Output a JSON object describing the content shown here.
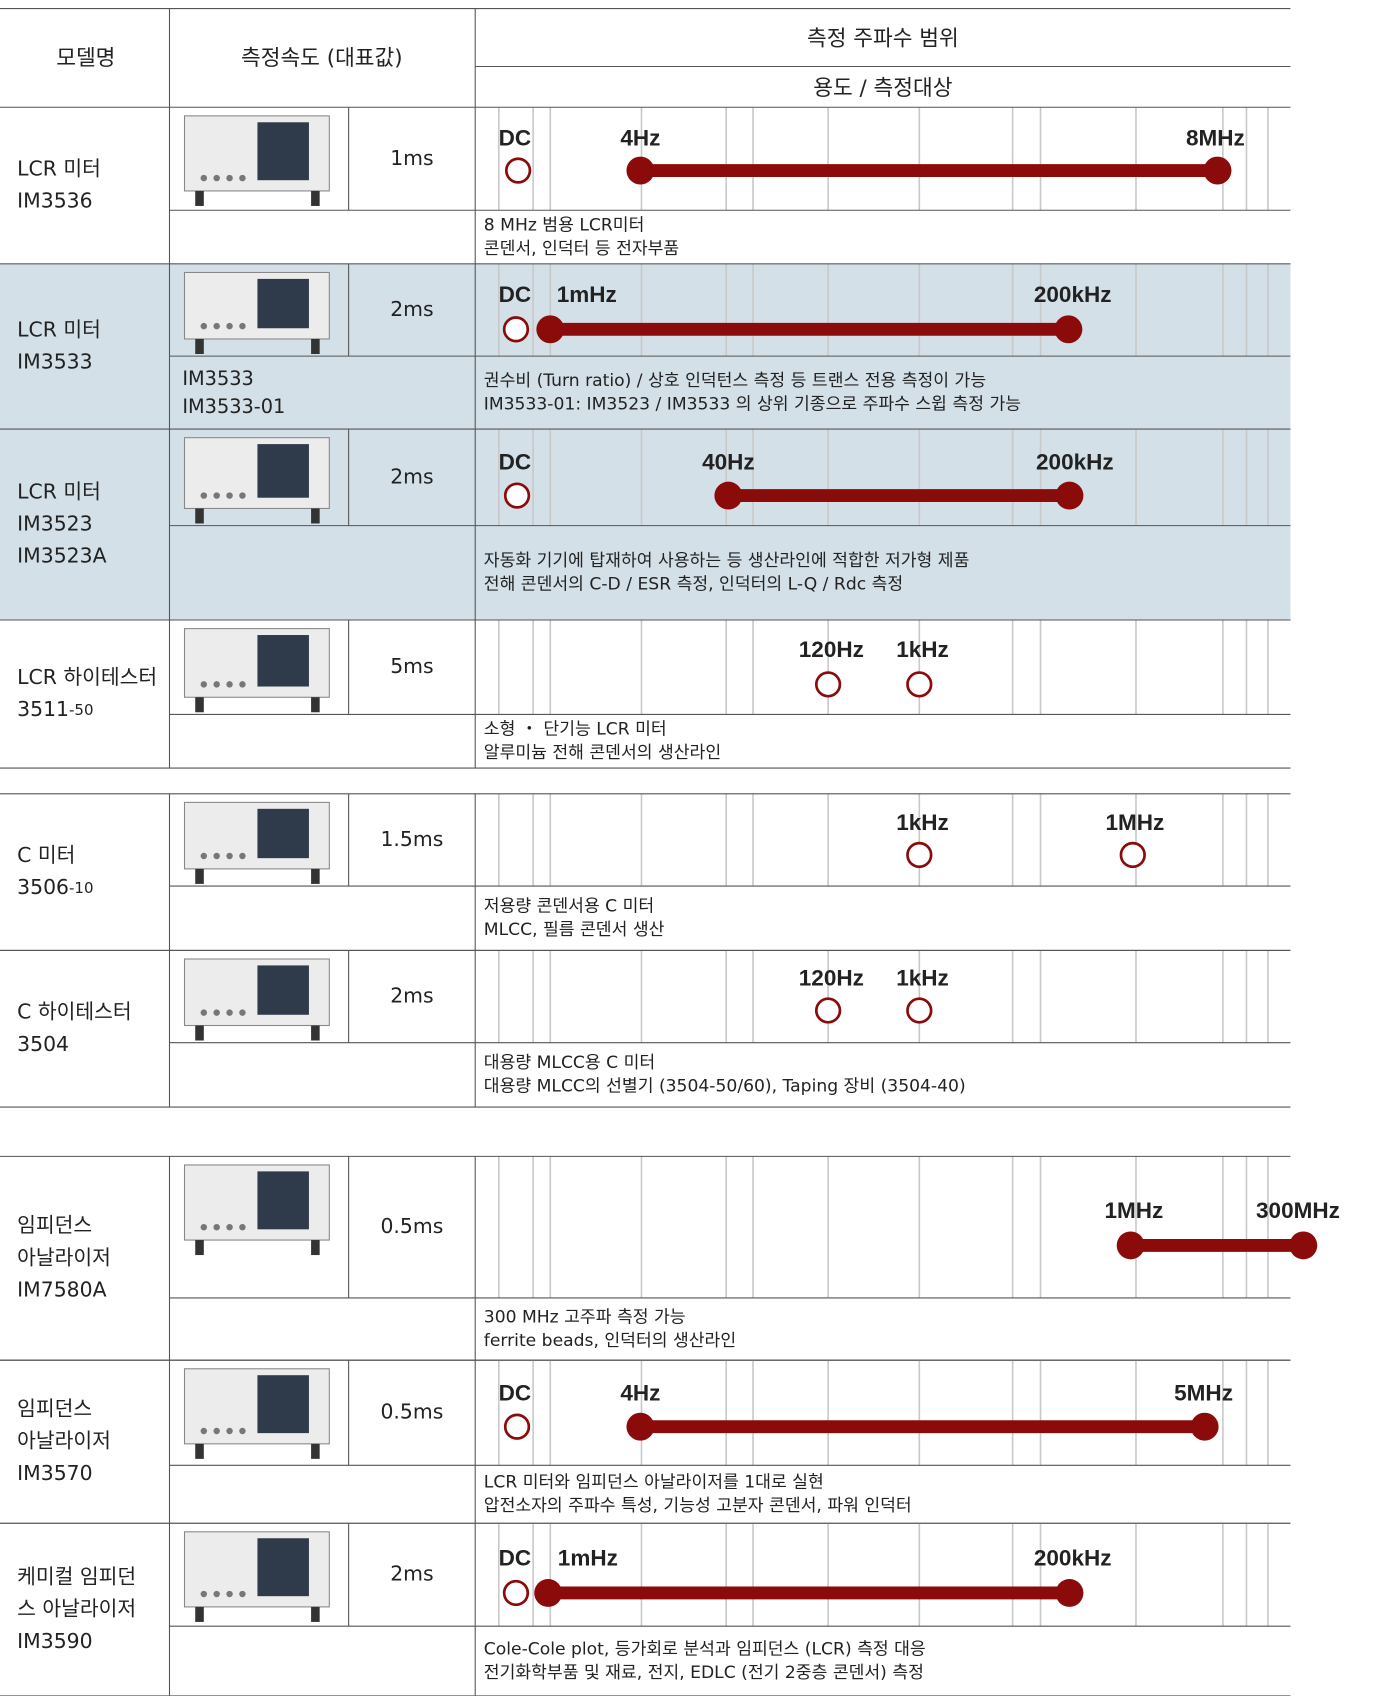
{
  "header": {
    "model": "모델명",
    "speed": "측정속도 (대표값)",
    "range": "측정 주파수 범위",
    "usage": "용도 / 측정대상"
  },
  "rows": [
    {
      "name": [
        "LCR 미터",
        "IM3536"
      ],
      "speed": "1ms",
      "variants": [],
      "freq_labels": [
        "DC",
        "4Hz",
        "8MHz"
      ],
      "usage": [
        "8 MHz 범용 LCR미터",
        "콘덴서, 인덕터 등 전자부품"
      ]
    },
    {
      "name": [
        "LCR 미터",
        "IM3533"
      ],
      "speed": "2ms",
      "variants": [
        "IM3533",
        "IM3533-01"
      ],
      "freq_labels": [
        "DC",
        "1mHz",
        "200kHz"
      ],
      "usage": [
        "권수비 (Turn ratio) / 상호 인덕턴스 측정 등 트랜스 전용 측정이 가능",
        "IM3533-01: IM3523 / IM3533 의 상위 기종으로 주파수 스윕 측정 가능"
      ]
    },
    {
      "name": [
        "LCR 미터",
        "IM3523",
        "IM3523A"
      ],
      "speed": "2ms",
      "variants": [],
      "freq_labels": [
        "DC",
        "40Hz",
        "200kHz"
      ],
      "usage": [
        "자동화 기기에 탑재하여 사용하는 등 생산라인에 적합한 저가형 제품",
        "전해 콘덴서의 C-D / ESR 측정, 인덕터의 L-Q / Rdc 측정"
      ]
    },
    {
      "name": [
        "LCR 하이테스터",
        "3511"
      ],
      "name_suffix": "-50",
      "speed": "5ms",
      "variants": [],
      "freq_labels": [
        "120Hz",
        "1kHz"
      ],
      "usage": [
        "소형 ・ 단기능 LCR 미터",
        "알루미늄 전해 콘덴서의 생산라인"
      ]
    },
    {
      "name": [
        "C 미터",
        "3506"
      ],
      "name_suffix": "-10",
      "speed": "1.5ms",
      "variants": [],
      "freq_labels": [
        "1kHz",
        "1MHz"
      ],
      "usage": [
        "저용량 콘덴서용 C 미터",
        "MLCC, 필름 콘덴서 생산"
      ]
    },
    {
      "name": [
        "C 하이테스터",
        "3504"
      ],
      "speed": "2ms",
      "variants": [],
      "freq_labels": [
        "120Hz",
        "1kHz"
      ],
      "usage": [
        "대용량 MLCC용 C 미터",
        "대용량 MLCC의 선별기 (3504-50/60), Taping 장비 (3504-40)"
      ]
    },
    {
      "name": [
        "임피던스",
        "아날라이저",
        "IM7580A"
      ],
      "speed": "0.5ms",
      "variants": [],
      "freq_labels": [
        "1MHz",
        "300MHz"
      ],
      "usage": [
        "300 MHz 고주파 측정 가능",
        "ferrite beads, 인덕터의 생산라인"
      ]
    },
    {
      "name": [
        "임피던스",
        "아날라이저",
        "IM3570"
      ],
      "speed": "0.5ms",
      "variants": [],
      "freq_labels": [
        "DC",
        "4Hz",
        "5MHz"
      ],
      "usage": [
        "LCR 미터와 임피던스 아날라이저를 1대로 실현",
        "압전소자의 주파수 특성, 기능성 고분자 콘덴서, 파워 인덕터"
      ]
    },
    {
      "name": [
        "케미컬 임피던",
        "스 아날라이저",
        "IM3590"
      ],
      "speed": "2ms",
      "variants": [],
      "freq_labels": [
        "DC",
        "1mHz",
        "200kHz"
      ],
      "usage": [
        "Cole-Cole plot, 등가회로 분석과 임피던스 (LCR) 측정 대응",
        "전기화학부품 및 재료, 전지, EDLC (전기 2중층 콘덴서) 측정"
      ]
    }
  ]
}
